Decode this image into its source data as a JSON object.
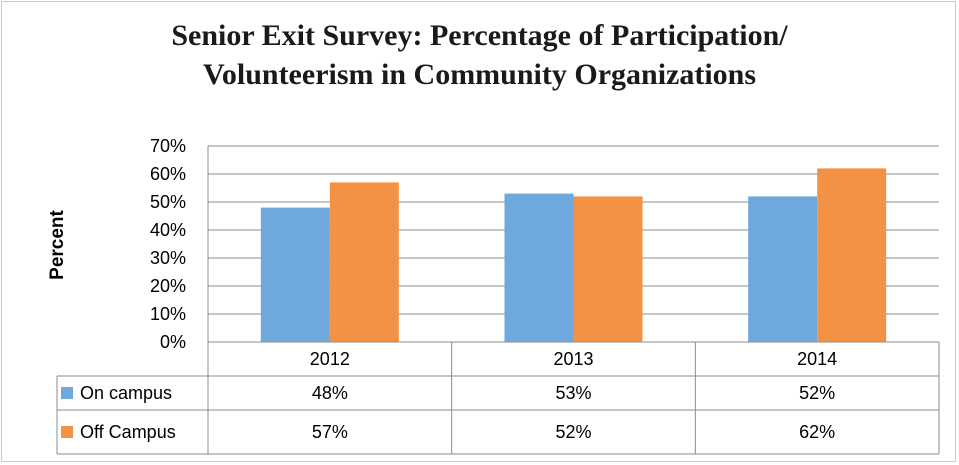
{
  "colors": {
    "on_campus": "#6FA8DC",
    "off_campus": "#F39244",
    "grid": "#8c8c8c",
    "border": "#c9c9c9"
  },
  "chart_data": {
    "type": "bar",
    "title": "Senior Exit Survey: Percentage of Participation/ Volunteerism in Community Organizations",
    "title_lines": [
      "Senior Exit Survey: Percentage of Participation/",
      "Volunteerism in Community Organizations"
    ],
    "ylabel": "Percent",
    "xlabel": "",
    "categories": [
      "2012",
      "2013",
      "2014"
    ],
    "ylim": [
      0,
      70
    ],
    "yticks": [
      "0%",
      "10%",
      "20%",
      "30%",
      "40%",
      "50%",
      "60%",
      "70%"
    ],
    "grid": true,
    "legend": "data-table",
    "series": [
      {
        "name": "On campus",
        "values": [
          48,
          53,
          52
        ],
        "labels": [
          "48%",
          "53%",
          "52%"
        ]
      },
      {
        "name": "Off Campus",
        "values": [
          57,
          52,
          62
        ],
        "labels": [
          "57%",
          "52%",
          "62%"
        ]
      }
    ]
  }
}
